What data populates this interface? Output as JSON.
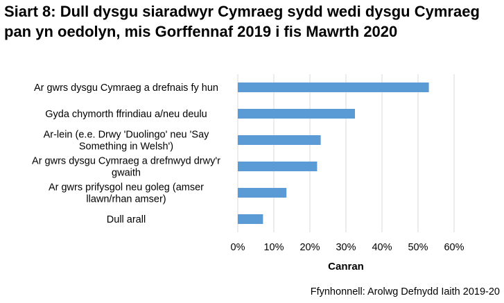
{
  "title": "Siart 8: Dull dysgu siaradwyr Cymraeg sydd wedi dysgu Cymraeg pan yn oedolyn, mis Gorffennaf 2019 i fis Mawrth 2020",
  "source": "Ffynhonnell: Arolwg Defnydd Iaith 2019-20",
  "chart_data": {
    "type": "bar",
    "orientation": "horizontal",
    "categories": [
      [
        "Ar gwrs dysgu Cymraeg a drefnais fy hun"
      ],
      [
        "Gyda chymorth ffrindiau a/neu deulu"
      ],
      [
        "Ar-lein (e.e. Drwy 'Duolingo' neu 'Say",
        "Something in Welsh')"
      ],
      [
        "Ar gwrs dysgu Cymraeg a drefnwyd drwy'r",
        "gwaith"
      ],
      [
        "Ar gwrs prifysgol neu goleg (amser",
        "llawn/rhan amser)"
      ],
      [
        "Dull arall"
      ]
    ],
    "values": [
      53,
      32.5,
      23,
      22,
      13.5,
      7
    ],
    "xlabel": "Canran",
    "ylabel": "",
    "xlim": [
      0,
      60
    ],
    "xticks": [
      0,
      10,
      20,
      30,
      40,
      50,
      60
    ],
    "tick_format": "{v}%",
    "grid": "vertical",
    "bar_color": "#5b9bd5",
    "grid_color": "#d9d9d9"
  }
}
